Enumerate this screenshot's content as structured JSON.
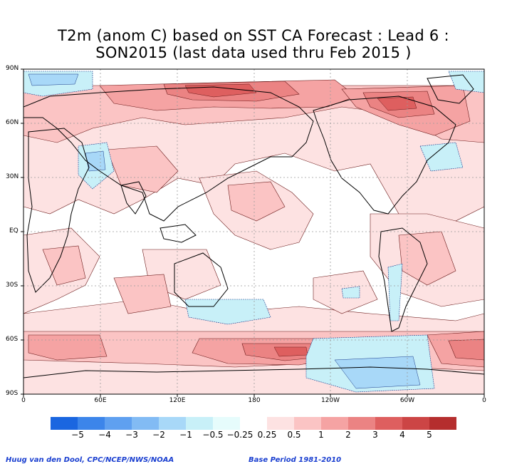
{
  "title_line1": "T2m (anom C) based on SST CA Forecast : Lead 6 :",
  "title_line2": "SON2015 (last data used thru Feb 2015 )",
  "lat_labels": [
    "90N",
    "60N",
    "30N",
    "EQ",
    "30S",
    "60S",
    "90S"
  ],
  "lon_labels": [
    "0",
    "60E",
    "120E",
    "180",
    "120W",
    "60W",
    "0"
  ],
  "legend": {
    "labels": [
      "−5",
      "−4",
      "−3",
      "−2",
      "−1",
      "−0.5",
      "−0.25",
      "0.25",
      "0.5",
      "1",
      "2",
      "3",
      "4",
      "5"
    ],
    "colors": [
      "#1a66e0",
      "#3c85ea",
      "#5fa0f0",
      "#82bbf4",
      "#a8d8f8",
      "#c8f0f8",
      "#e6fcfc",
      "#ffffff",
      "#fde2e2",
      "#fbc4c4",
      "#f5a3a3",
      "#eb8383",
      "#de5f5f",
      "#cc4545",
      "#b52e2e"
    ]
  },
  "credit_left": "Huug van den Dool, CPC/NCEP/NWS/NOAA",
  "credit_right": "Base Period 1981-2010"
}
